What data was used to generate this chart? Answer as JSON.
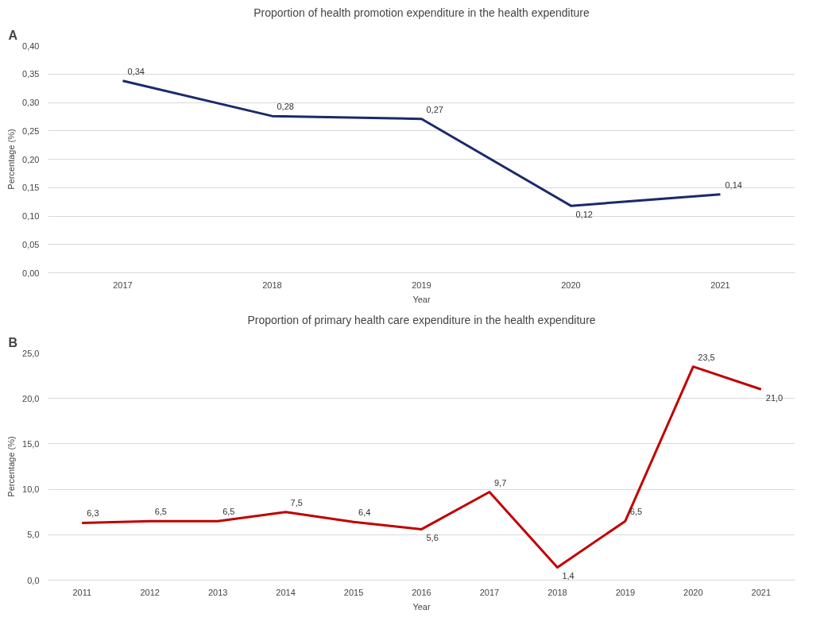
{
  "chart_data": [
    {
      "type": "line",
      "title": "Proportion of health promotion expenditure in the health expenditure",
      "xlabel": "Year",
      "ylabel": "Percentage (%)",
      "annotations": [
        "A"
      ],
      "categories": [
        "2017",
        "2018",
        "2019",
        "2020",
        "2021"
      ],
      "series": [
        {
          "color": "#1b2a6b",
          "values": [
            0.338,
            0.276,
            0.271,
            0.118,
            0.138
          ],
          "value_labels": [
            "0,34",
            "0,28",
            "0,27",
            "0,12",
            "0,14"
          ]
        }
      ],
      "ylim": [
        0,
        0.4
      ],
      "yticks": [
        {
          "value": 0,
          "label": "0,00"
        },
        {
          "value": 0.05,
          "label": "0,05"
        },
        {
          "value": 0.1,
          "label": "0,10"
        },
        {
          "value": 0.15,
          "label": "0,15"
        },
        {
          "value": 0.2,
          "label": "0,20"
        },
        {
          "value": 0.25,
          "label": "0,25"
        },
        {
          "value": 0.3,
          "label": "0,30"
        },
        {
          "value": 0.35,
          "label": "0,35"
        },
        {
          "value": 0.4,
          "label": "0,40"
        }
      ],
      "grid": "y"
    },
    {
      "type": "line",
      "title": "Proportion of primary health care expenditure in the health expenditure",
      "xlabel": "Year",
      "ylabel": "Percentage (%)",
      "annotations": [
        "B"
      ],
      "categories": [
        "2011",
        "2012",
        "2013",
        "2014",
        "2015",
        "2016",
        "2017",
        "2018",
        "2019",
        "2020",
        "2021"
      ],
      "series": [
        {
          "color": "#c00000",
          "values": [
            6.3,
            6.5,
            6.5,
            7.5,
            6.4,
            5.6,
            9.7,
            1.4,
            6.5,
            23.5,
            21.0
          ],
          "value_labels": [
            "6,3",
            "6,5",
            "6,5",
            "7,5",
            "6,4",
            "5,6",
            "9,7",
            "1,4",
            "6,5",
            "23,5",
            "21,0"
          ]
        }
      ],
      "ylim": [
        0,
        25
      ],
      "yticks": [
        {
          "value": 0,
          "label": "0,0"
        },
        {
          "value": 5,
          "label": "5,0"
        },
        {
          "value": 10,
          "label": "10,0"
        },
        {
          "value": 15,
          "label": "15,0"
        },
        {
          "value": 20,
          "label": "20,0"
        },
        {
          "value": 25,
          "label": "25,0"
        }
      ],
      "grid": "y"
    }
  ]
}
